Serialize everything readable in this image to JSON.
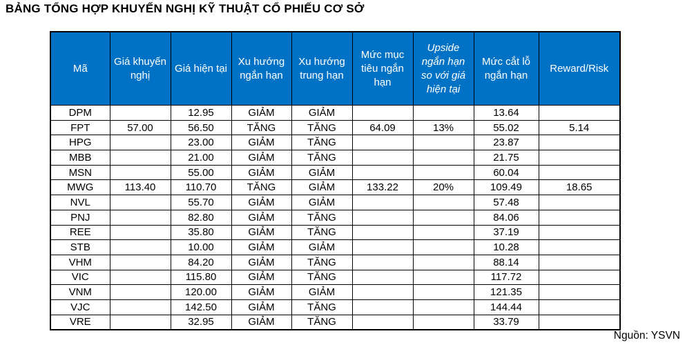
{
  "title": "BẢNG TỔNG HỢP KHUYẾN NGHỊ KỸ THUẬT CỔ PHIẾU CƠ SỞ",
  "source_note": "Nguồn: YSVN",
  "colors": {
    "header_bg": "#0072C6",
    "header_text": "#FFFFFF",
    "border": "#000000",
    "body_text": "#000000"
  },
  "table": {
    "columns": [
      {
        "key": "code",
        "label": "Mã",
        "italic": false
      },
      {
        "key": "rec_price",
        "label": "Giá khuyến nghị",
        "italic": false
      },
      {
        "key": "cur_price",
        "label": "Giá hiện tại",
        "italic": false
      },
      {
        "key": "short_trend",
        "label": "Xu hướng ngắn hạn",
        "italic": false
      },
      {
        "key": "mid_trend",
        "label": "Xu hướng trung hạn",
        "italic": false
      },
      {
        "key": "target",
        "label": "Mức mục tiêu ngắn hạn",
        "italic": false
      },
      {
        "key": "upside",
        "label": "Upside ngắn hạn so với giá hiện tại",
        "italic": true
      },
      {
        "key": "stop_loss",
        "label": "Mức cắt lỗ ngắn hạn",
        "italic": false
      },
      {
        "key": "reward_risk",
        "label": "Reward/Risk",
        "italic": false
      }
    ],
    "rows": [
      [
        "DPM",
        "",
        "12.95",
        "GIẢM",
        "GIẢM",
        "",
        "",
        "13.64",
        ""
      ],
      [
        "FPT",
        "57.00",
        "56.50",
        "TĂNG",
        "TĂNG",
        "64.09",
        "13%",
        "55.02",
        "5.14"
      ],
      [
        "HPG",
        "",
        "23.00",
        "GIẢM",
        "TĂNG",
        "",
        "",
        "23.87",
        ""
      ],
      [
        "MBB",
        "",
        "21.00",
        "GIẢM",
        "TĂNG",
        "",
        "",
        "21.75",
        ""
      ],
      [
        "MSN",
        "",
        "55.00",
        "GIẢM",
        "GIẢM",
        "",
        "",
        "60.04",
        ""
      ],
      [
        "MWG",
        "113.40",
        "110.70",
        "TĂNG",
        "GIẢM",
        "133.22",
        "20%",
        "109.49",
        "18.65"
      ],
      [
        "NVL",
        "",
        "55.70",
        "GIẢM",
        "GIẢM",
        "",
        "",
        "57.48",
        ""
      ],
      [
        "PNJ",
        "",
        "82.80",
        "GIẢM",
        "TĂNG",
        "",
        "",
        "84.06",
        ""
      ],
      [
        "REE",
        "",
        "35.80",
        "GIẢM",
        "TĂNG",
        "",
        "",
        "37.19",
        ""
      ],
      [
        "STB",
        "",
        "10.00",
        "GIẢM",
        "GIẢM",
        "",
        "",
        "10.28",
        ""
      ],
      [
        "VHM",
        "",
        "84.20",
        "GIẢM",
        "TĂNG",
        "",
        "",
        "88.14",
        ""
      ],
      [
        "VIC",
        "",
        "115.80",
        "GIẢM",
        "TĂNG",
        "",
        "",
        "117.72",
        ""
      ],
      [
        "VNM",
        "",
        "120.00",
        "GIẢM",
        "GIẢM",
        "",
        "",
        "121.35",
        ""
      ],
      [
        "VJC",
        "",
        "142.50",
        "GIẢM",
        "TĂNG",
        "",
        "",
        "144.44",
        ""
      ],
      [
        "VRE",
        "",
        "32.95",
        "GIẢM",
        "TĂNG",
        "",
        "",
        "33.79",
        ""
      ]
    ]
  }
}
